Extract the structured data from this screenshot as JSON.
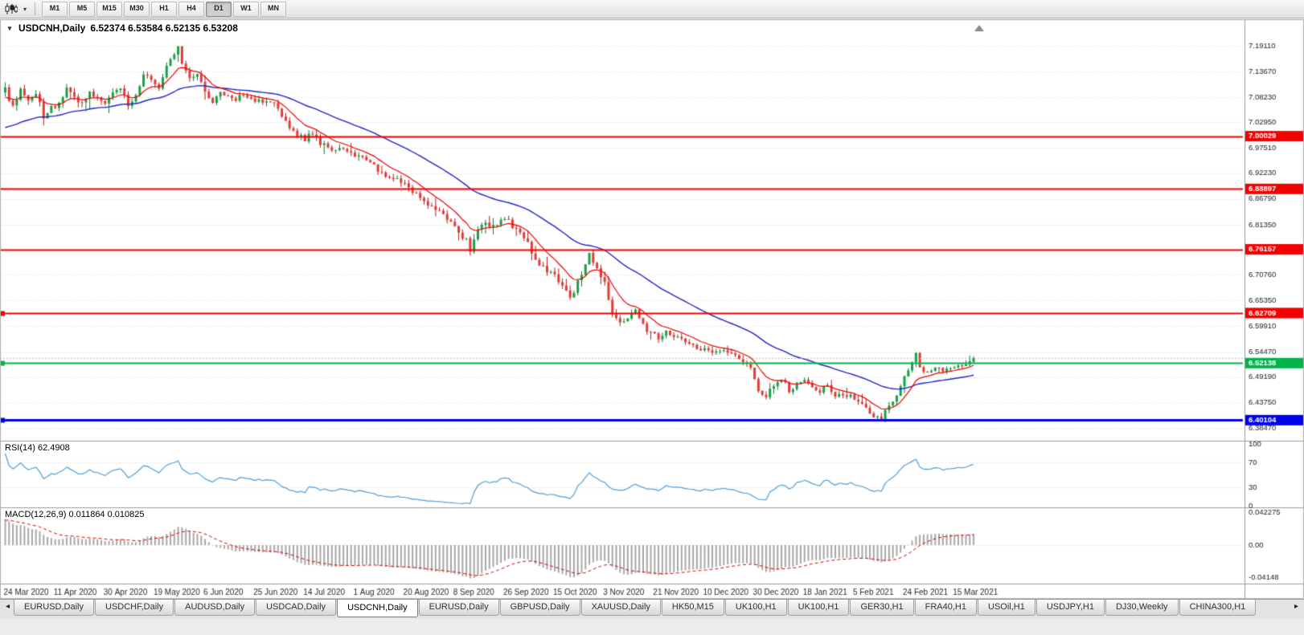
{
  "icons": {
    "chart_context_menu": "▾",
    "toolbar_caret": "▾",
    "tab_scroll_left": "◂",
    "tab_scroll_right": "▸"
  },
  "toolbar": {
    "timeframes": [
      "M1",
      "M5",
      "M15",
      "M30",
      "H1",
      "H4",
      "D1",
      "W1",
      "MN"
    ],
    "active_timeframe": "D1"
  },
  "chart": {
    "symbol_period": "USDCNH,Daily",
    "ohlc": "6.52374 6.53584 6.52135 6.53208"
  },
  "chart_data": {
    "type": "candlestick",
    "symbol": "USDCNH",
    "timeframe": "Daily",
    "current": {
      "open": 6.52374,
      "high": 6.53584,
      "low": 6.52135,
      "close": 6.53208
    },
    "candle_count": 253,
    "x_label_interval_candles": 13,
    "x_labels": [
      "24 Mar 2020",
      "11 Apr 2020",
      "30 Apr 2020",
      "19 May 2020",
      "6 Jun 2020",
      "25 Jun 2020",
      "14 Jul 2020",
      "1 Aug 2020",
      "20 Aug 2020",
      "8 Sep 2020",
      "26 Sep 2020",
      "15 Oct 2020",
      "3 Nov 2020",
      "21 Nov 2020",
      "10 Dec 2020",
      "30 Dec 2020",
      "18 Jan 2021",
      "5 Feb 2021",
      "24 Feb 2021",
      "15 Mar 2021"
    ],
    "y_axis_labels": [
      "7.19110",
      "7.13670",
      "7.08230",
      "7.02950",
      "6.97510",
      "6.92230",
      "6.86790",
      "6.81350",
      "6.76030",
      "6.70760",
      "6.65350",
      "6.59910",
      "6.54470",
      "6.49190",
      "6.43750",
      "6.38470"
    ],
    "y_range": [
      6.3847,
      7.1911
    ],
    "close_anchors": [
      [
        0,
        7.105
      ],
      [
        2,
        7.06
      ],
      [
        4,
        7.1
      ],
      [
        6,
        7.075
      ],
      [
        8,
        7.09
      ],
      [
        10,
        7.045
      ],
      [
        12,
        7.06
      ],
      [
        14,
        7.075
      ],
      [
        16,
        7.1
      ],
      [
        18,
        7.085
      ],
      [
        20,
        7.065
      ],
      [
        22,
        7.095
      ],
      [
        24,
        7.08
      ],
      [
        26,
        7.065
      ],
      [
        28,
        7.09
      ],
      [
        30,
        7.105
      ],
      [
        32,
        7.065
      ],
      [
        34,
        7.085
      ],
      [
        36,
        7.13
      ],
      [
        38,
        7.115
      ],
      [
        40,
        7.1
      ],
      [
        42,
        7.145
      ],
      [
        44,
        7.175
      ],
      [
        45,
        7.19
      ],
      [
        46,
        7.155
      ],
      [
        48,
        7.12
      ],
      [
        50,
        7.135
      ],
      [
        52,
        7.09
      ],
      [
        54,
        7.075
      ],
      [
        56,
        7.095
      ],
      [
        58,
        7.085
      ],
      [
        60,
        7.075
      ],
      [
        62,
        7.09
      ],
      [
        64,
        7.08
      ],
      [
        66,
        7.075
      ],
      [
        68,
        7.07
      ],
      [
        70,
        7.065
      ],
      [
        72,
        7.045
      ],
      [
        74,
        7.02
      ],
      [
        76,
        7.0
      ],
      [
        78,
        6.995
      ],
      [
        80,
        7.005
      ],
      [
        82,
        6.985
      ],
      [
        84,
        6.975
      ],
      [
        86,
        6.97
      ],
      [
        88,
        6.975
      ],
      [
        90,
        6.965
      ],
      [
        92,
        6.955
      ],
      [
        94,
        6.95
      ],
      [
        96,
        6.935
      ],
      [
        98,
        6.925
      ],
      [
        100,
        6.915
      ],
      [
        102,
        6.91
      ],
      [
        104,
        6.905
      ],
      [
        106,
        6.885
      ],
      [
        108,
        6.87
      ],
      [
        110,
        6.855
      ],
      [
        112,
        6.845
      ],
      [
        114,
        6.84
      ],
      [
        116,
        6.815
      ],
      [
        118,
        6.795
      ],
      [
        120,
        6.78
      ],
      [
        121,
        6.755
      ],
      [
        123,
        6.8
      ],
      [
        125,
        6.815
      ],
      [
        127,
        6.81
      ],
      [
        129,
        6.825
      ],
      [
        131,
        6.82
      ],
      [
        133,
        6.8
      ],
      [
        135,
        6.79
      ],
      [
        137,
        6.755
      ],
      [
        139,
        6.73
      ],
      [
        141,
        6.715
      ],
      [
        143,
        6.705
      ],
      [
        145,
        6.685
      ],
      [
        147,
        6.655
      ],
      [
        149,
        6.695
      ],
      [
        151,
        6.725
      ],
      [
        152,
        6.755
      ],
      [
        154,
        6.72
      ],
      [
        156,
        6.69
      ],
      [
        157,
        6.655
      ],
      [
        158,
        6.625
      ],
      [
        160,
        6.61
      ],
      [
        162,
        6.615
      ],
      [
        164,
        6.63
      ],
      [
        166,
        6.6
      ],
      [
        168,
        6.585
      ],
      [
        170,
        6.575
      ],
      [
        172,
        6.59
      ],
      [
        174,
        6.58
      ],
      [
        176,
        6.57
      ],
      [
        178,
        6.56
      ],
      [
        180,
        6.555
      ],
      [
        182,
        6.55
      ],
      [
        184,
        6.545
      ],
      [
        186,
        6.55
      ],
      [
        188,
        6.545
      ],
      [
        190,
        6.54
      ],
      [
        192,
        6.525
      ],
      [
        194,
        6.51
      ],
      [
        196,
        6.465
      ],
      [
        198,
        6.45
      ],
      [
        200,
        6.475
      ],
      [
        202,
        6.49
      ],
      [
        204,
        6.465
      ],
      [
        206,
        6.475
      ],
      [
        208,
        6.485
      ],
      [
        210,
        6.47
      ],
      [
        212,
        6.46
      ],
      [
        214,
        6.475
      ],
      [
        216,
        6.455
      ],
      [
        218,
        6.45
      ],
      [
        220,
        6.455
      ],
      [
        222,
        6.44
      ],
      [
        224,
        6.425
      ],
      [
        226,
        6.41
      ],
      [
        228,
        6.405
      ],
      [
        230,
        6.43
      ],
      [
        232,
        6.455
      ],
      [
        234,
        6.49
      ],
      [
        236,
        6.52
      ],
      [
        237,
        6.545
      ],
      [
        238,
        6.51
      ],
      [
        240,
        6.5
      ],
      [
        242,
        6.51
      ],
      [
        244,
        6.505
      ],
      [
        246,
        6.51
      ],
      [
        248,
        6.515
      ],
      [
        250,
        6.52
      ],
      [
        252,
        6.532
      ]
    ],
    "levels": [
      {
        "price": 7.00029,
        "label": "7.00029",
        "color": "#f40000",
        "width": 2,
        "handle": false
      },
      {
        "price": 6.88897,
        "label": "6.88897",
        "color": "#f40000",
        "width": 2,
        "handle": false
      },
      {
        "price": 6.76157,
        "label": "6.76157",
        "color": "#f40000",
        "width": 2,
        "handle": false
      },
      {
        "price": 6.62709,
        "label": "6.62709",
        "color": "#f40000",
        "width": 2,
        "handle": true
      },
      {
        "price": 6.52138,
        "label": "6.52138",
        "color": "#00b44a",
        "width": 2,
        "handle": true
      },
      {
        "price": 6.40104,
        "label": "6.40104",
        "color": "#0000f0",
        "width": 3,
        "handle": true
      }
    ],
    "current_price_line": {
      "price": 6.53208,
      "style": "dotted",
      "color": "#b8b8b8"
    },
    "moving_averages": [
      {
        "name": "fast-ma",
        "period": 10,
        "color": "#ee0000"
      },
      {
        "name": "slow-ma",
        "period": 40,
        "color": "#2323cc"
      }
    ],
    "indicators": {
      "rsi": {
        "label": "RSI(14)",
        "value": "62.4908",
        "period": 14,
        "scale_labels": [
          "100",
          "70",
          "30",
          "0"
        ],
        "scale_values": [
          100,
          70,
          30,
          0
        ],
        "level_lines": [
          70,
          30
        ],
        "color": "#4f9fd8"
      },
      "macd": {
        "label": "MACD(12,26,9)",
        "value": "0.011864 0.010825",
        "fast": 12,
        "slow": 26,
        "signal": 9,
        "scale_labels": [
          "0.042275",
          "0.00",
          "-0.04148"
        ],
        "scale_values": [
          0.042275,
          0,
          -0.04148
        ],
        "histogram_color": "#a8a8a8",
        "signal_color": "#e00000"
      }
    }
  },
  "colors": {
    "chart_bg": "#ffffff",
    "grid": "#d7d7d7",
    "axis_text": "#1a1a1a",
    "candle_up": "#16a049",
    "candle_up_wick": "#0c7a33",
    "candle_down": "#e33b35",
    "candle_down_wick": "#b21d1d",
    "pane_divider": "#9a9a9a",
    "shift_marker": "#8a8a8a"
  },
  "tabs": {
    "active_index": 4,
    "items": [
      "EURUSD,Daily",
      "USDCHF,Daily",
      "AUDUSD,Daily",
      "USDCAD,Daily",
      "USDCNH,Daily",
      "EURUSD,Daily",
      "GBPUSD,Daily",
      "XAUUSD,Daily",
      "HK50,M15",
      "UK100,H1",
      "UK100,H1",
      "GER30,H1",
      "FRA40,H1",
      "USOil,H1",
      "USDJPY,H1",
      "DJ30,Weekly",
      "CHINA300,H1"
    ]
  }
}
